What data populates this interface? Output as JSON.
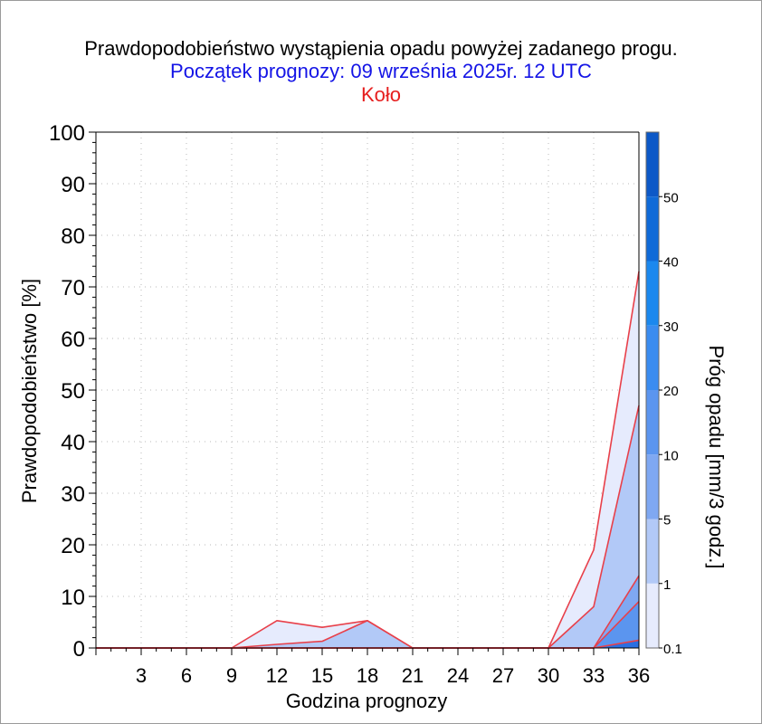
{
  "chart_data": {
    "type": "area",
    "title": "Prawdopodobieństwo wystąpienia opadu powyżej zadanego progu.",
    "subtitle": "Początek prognozy: 09 września 2025r. 12 UTC",
    "location": "Koło",
    "xlabel": "Godzina prognozy",
    "ylabel": "Prawdopodobieństwo [%]",
    "xlim": [
      0,
      36
    ],
    "ylim": [
      0,
      100
    ],
    "x_ticks": [
      3,
      6,
      9,
      12,
      15,
      18,
      21,
      24,
      27,
      30,
      33,
      36
    ],
    "y_ticks": [
      0,
      10,
      20,
      30,
      40,
      50,
      60,
      70,
      80,
      90,
      100
    ],
    "grid": true,
    "x": [
      0,
      3,
      6,
      9,
      12,
      15,
      18,
      21,
      24,
      27,
      30,
      33,
      36
    ],
    "series": [
      {
        "threshold": "0.1",
        "color": "#e6ebfd",
        "values": [
          0,
          0,
          0,
          0,
          5.3,
          4.0,
          5.3,
          0,
          0,
          0,
          0,
          19,
          73
        ]
      },
      {
        "threshold": "1",
        "color": "#b2c9f7",
        "values": [
          0,
          0,
          0,
          0,
          0.7,
          1.3,
          5.3,
          0,
          0,
          0,
          0,
          8,
          47
        ]
      },
      {
        "threshold": "5",
        "color": "#7fa8f2",
        "values": [
          0,
          0,
          0,
          0,
          0,
          0,
          0,
          0,
          0,
          0,
          0,
          0,
          14
        ]
      },
      {
        "threshold": "10",
        "color": "#5b95ef",
        "values": [
          0,
          0,
          0,
          0,
          0,
          0,
          0,
          0,
          0,
          0,
          0,
          0,
          9
        ]
      },
      {
        "threshold": "20",
        "color": "#2a6fe2",
        "values": [
          0,
          0,
          0,
          0,
          0,
          0,
          0,
          0,
          0,
          0,
          0,
          0,
          1.5
        ]
      }
    ],
    "line_color": "#e8404a",
    "colorbar": {
      "label": "Próg opadu [mm/3 godz.]",
      "ticks": [
        "0.1",
        "1",
        "5",
        "10",
        "20",
        "30",
        "40",
        "50"
      ],
      "colors": [
        "#e6ebfd",
        "#b2c9f7",
        "#7fa8f2",
        "#5b95ef",
        "#3a8cf0",
        "#1b88ee",
        "#0f6ad8",
        "#0c58c7",
        "#0848b0",
        "#063c98"
      ]
    }
  }
}
